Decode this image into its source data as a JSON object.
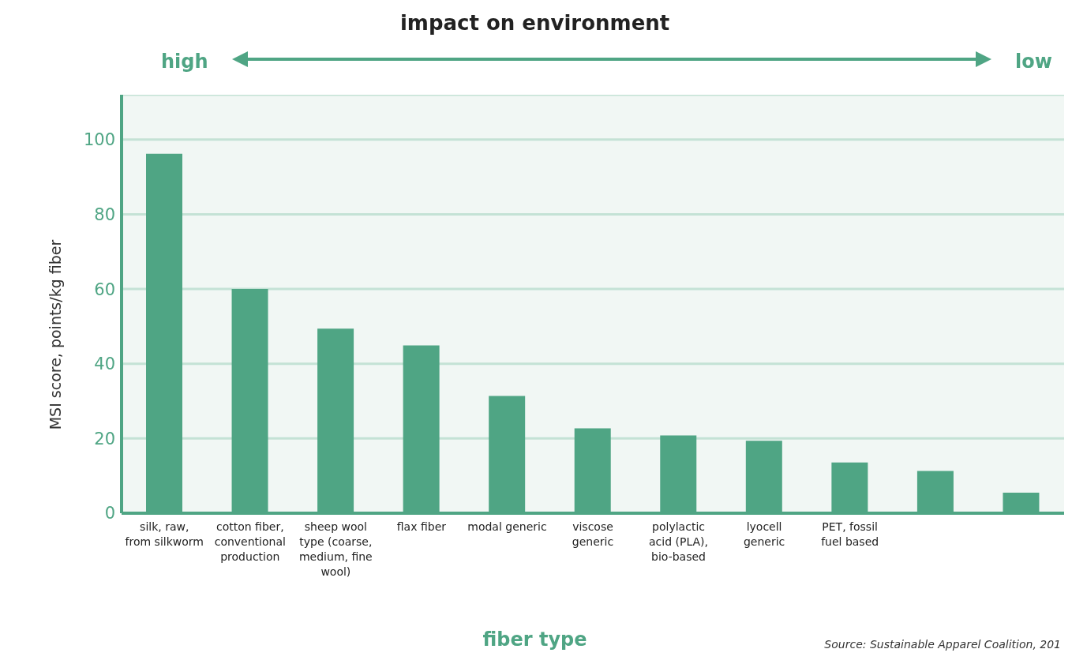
{
  "chart_data": {
    "type": "bar",
    "title": "impact on environment",
    "xlabel": "fiber type",
    "ylabel": "MSI score, points/kg fiber",
    "annotations": [
      "high",
      "low",
      "Source: Sustainable Apparel Coalition, 201"
    ],
    "categories": [
      "silk, raw, from silkworm",
      "cotton fiber, conventional production",
      "sheep wool type (coarse, medium, fine wool)",
      "flax fiber",
      "modal generic",
      "viscose generic",
      "polylactic acid (PLA), bio-based",
      "lyocell generic",
      "PET, fossil fuel based",
      null,
      null
    ],
    "values": [
      96.2,
      60,
      49.4,
      44.9,
      31.4,
      22.7,
      20.8,
      19.4,
      13.6,
      11.3,
      5.5
    ],
    "color": "#4fa584",
    "ylim": [
      0,
      112
    ],
    "yticks": [
      0,
      20,
      40,
      60,
      80,
      100
    ],
    "grid": "y",
    "legend": false
  }
}
